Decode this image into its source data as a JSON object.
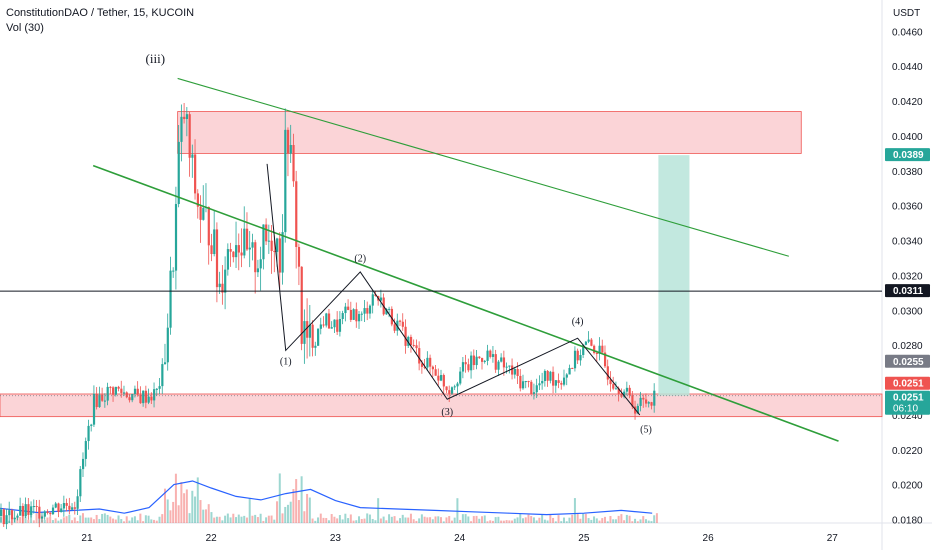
{
  "header": {
    "title": "ConstitutionDAO / Tether, 15, KUCOIN",
    "indicator": "Vol (30)"
  },
  "colors": {
    "up": "#26a69a",
    "down": "#ef5350",
    "zone_fill": "#f9c6c9",
    "zone_stroke": "#ef5350",
    "target_fill": "#b7e4d9",
    "trend_green": "#2e9e3a",
    "wave_black": "#131722",
    "support_line": "#131722",
    "volume_ma": "#2962ff",
    "tag_green": "#26a69a",
    "tag_red": "#ef5350",
    "tag_black": "#131722",
    "tag_gray": "#787b86"
  },
  "chart_data": {
    "type": "candlestick",
    "symbol": "ConstitutionDAO / Tether",
    "interval": "15",
    "exchange": "KUCOIN",
    "y_unit": "USDT",
    "ylim": [
      0.0178,
      0.0478
    ],
    "y_ticks": [
      "0.0460",
      "0.0440",
      "0.0420",
      "0.0400",
      "0.0380",
      "0.0360",
      "0.0340",
      "0.0320",
      "0.0300",
      "0.0280",
      "0.0260",
      "0.0240",
      "0.0220",
      "0.0200",
      "0.0180"
    ],
    "x_ticks": [
      {
        "day": 21,
        "label": "21"
      },
      {
        "day": 22,
        "label": "22"
      },
      {
        "day": 23,
        "label": "23"
      },
      {
        "day": 24,
        "label": "24"
      },
      {
        "day": 25,
        "label": "25"
      },
      {
        "day": 26,
        "label": "26"
      },
      {
        "day": 27,
        "label": "27"
      }
    ],
    "xlim": [
      20.3,
      27.4
    ],
    "price_path": [
      [
        20.3,
        0.0182
      ],
      [
        20.6,
        0.0185
      ],
      [
        20.9,
        0.019
      ],
      [
        21.0,
        0.023
      ],
      [
        21.05,
        0.0248
      ],
      [
        21.2,
        0.0255
      ],
      [
        21.4,
        0.025
      ],
      [
        21.55,
        0.0252
      ],
      [
        21.6,
        0.0265
      ],
      [
        21.65,
        0.03
      ],
      [
        21.7,
        0.0345
      ],
      [
        21.73,
        0.039
      ],
      [
        21.78,
        0.0415
      ],
      [
        21.82,
        0.0385
      ],
      [
        21.9,
        0.0355
      ],
      [
        22.0,
        0.0345
      ],
      [
        22.05,
        0.031
      ],
      [
        22.1,
        0.033
      ],
      [
        22.2,
        0.0345
      ],
      [
        22.3,
        0.0325
      ],
      [
        22.4,
        0.0335
      ],
      [
        22.5,
        0.0345
      ],
      [
        22.55,
        0.033
      ],
      [
        22.6,
        0.041
      ],
      [
        22.65,
        0.037
      ],
      [
        22.7,
        0.032
      ],
      [
        22.72,
        0.0285
      ],
      [
        22.8,
        0.028
      ],
      [
        22.9,
        0.0295
      ],
      [
        23.0,
        0.029
      ],
      [
        23.1,
        0.03
      ],
      [
        23.2,
        0.0295
      ],
      [
        23.3,
        0.031
      ],
      [
        23.4,
        0.03
      ],
      [
        23.5,
        0.029
      ],
      [
        23.6,
        0.028
      ],
      [
        23.7,
        0.027
      ],
      [
        23.8,
        0.0265
      ],
      [
        23.9,
        0.0255
      ],
      [
        24.0,
        0.0265
      ],
      [
        24.1,
        0.027
      ],
      [
        24.2,
        0.0275
      ],
      [
        24.3,
        0.027
      ],
      [
        24.4,
        0.0265
      ],
      [
        24.5,
        0.0258
      ],
      [
        24.6,
        0.0255
      ],
      [
        24.7,
        0.0262
      ],
      [
        24.8,
        0.026
      ],
      [
        24.9,
        0.027
      ],
      [
        25.0,
        0.028
      ],
      [
        25.1,
        0.0278
      ],
      [
        25.2,
        0.0262
      ],
      [
        25.3,
        0.0255
      ],
      [
        25.4,
        0.0245
      ],
      [
        25.5,
        0.0248
      ],
      [
        25.55,
        0.0251
      ]
    ],
    "zones": [
      {
        "type": "resistance",
        "x_start": 21.73,
        "x_end": 26.75,
        "y_low": 0.039,
        "y_high": 0.0414
      },
      {
        "type": "support",
        "x_start": 20.3,
        "x_end": 27.4,
        "y_low": 0.0239,
        "y_high": 0.0252
      },
      {
        "type": "target",
        "x_start": 25.6,
        "x_end": 25.85,
        "y_low": 0.0251,
        "y_high": 0.0389
      }
    ],
    "lines": [
      {
        "type": "trend-upper",
        "points": [
          [
            21.73,
            0.0433
          ],
          [
            26.65,
            0.0331
          ]
        ]
      },
      {
        "type": "trend-lower",
        "points": [
          [
            21.05,
            0.0383
          ],
          [
            27.05,
            0.0225
          ]
        ]
      },
      {
        "type": "horizontal",
        "y": 0.0311
      }
    ],
    "wave_path": [
      [
        22.45,
        0.0384
      ],
      [
        22.6,
        0.0277
      ],
      [
        23.2,
        0.0322
      ],
      [
        23.9,
        0.0249
      ],
      [
        24.95,
        0.0284
      ],
      [
        25.45,
        0.024
      ]
    ],
    "wave_labels": [
      {
        "text": "(iii)",
        "x": 21.55,
        "y": 0.0442
      },
      {
        "text": "(1)",
        "x": 22.6,
        "y": 0.0269
      },
      {
        "text": "(2)",
        "x": 23.2,
        "y": 0.0328
      },
      {
        "text": "(3)",
        "x": 23.9,
        "y": 0.024
      },
      {
        "text": "(4)",
        "x": 24.95,
        "y": 0.0292
      },
      {
        "text": "(5)",
        "x": 25.5,
        "y": 0.023
      }
    ],
    "price_tags": [
      {
        "value": 0.0389,
        "label": "0.0389",
        "color": "green"
      },
      {
        "value": 0.0311,
        "label": "0.0311",
        "color": "black"
      },
      {
        "value": 0.0255,
        "label": "0.0255",
        "color": "gray"
      },
      {
        "value": 0.0251,
        "label": "0.0251",
        "color": "red"
      },
      {
        "value": 0.0251,
        "label": "0.0251",
        "color": "green",
        "sub": "06:10"
      }
    ],
    "volume": {
      "ma_path": [
        [
          20.3,
          0.21
        ],
        [
          20.6,
          0.15
        ],
        [
          20.9,
          0.18
        ],
        [
          21.1,
          0.2
        ],
        [
          21.3,
          0.14
        ],
        [
          21.5,
          0.22
        ],
        [
          21.7,
          0.55
        ],
        [
          21.85,
          0.6
        ],
        [
          22.0,
          0.5
        ],
        [
          22.2,
          0.38
        ],
        [
          22.4,
          0.33
        ],
        [
          22.6,
          0.42
        ],
        [
          22.8,
          0.48
        ],
        [
          23.0,
          0.32
        ],
        [
          23.2,
          0.22
        ],
        [
          23.5,
          0.2
        ],
        [
          23.8,
          0.18
        ],
        [
          24.1,
          0.16
        ],
        [
          24.4,
          0.14
        ],
        [
          24.7,
          0.12
        ],
        [
          25.0,
          0.14
        ],
        [
          25.3,
          0.18
        ],
        [
          25.55,
          0.14
        ]
      ]
    }
  }
}
